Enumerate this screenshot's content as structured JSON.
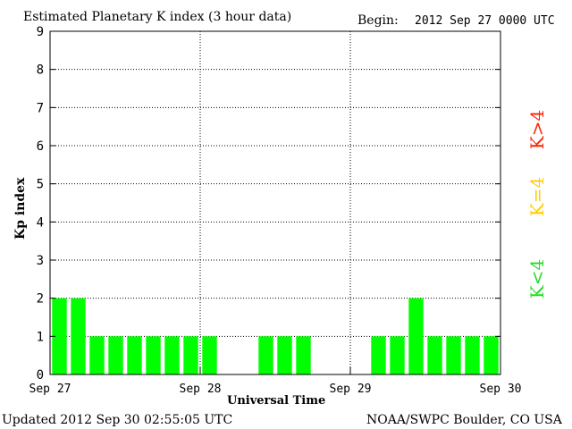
{
  "chart_data": {
    "type": "bar",
    "title": "Estimated Planetary K index (3 hour data)",
    "begin_label": "Begin:",
    "begin_value": "2012 Sep 27 0000 UTC",
    "xlabel": "Universal Time",
    "ylabel": "Kp index",
    "ylim": [
      0,
      9
    ],
    "yticks": [
      "0",
      "1",
      "2",
      "3",
      "4",
      "5",
      "6",
      "7",
      "8",
      "9"
    ],
    "xticks": [
      "Sep 27",
      "Sep 28",
      "Sep 29",
      "Sep 30"
    ],
    "grid": true,
    "bar_color": "#00ff00",
    "values": [
      2,
      2,
      1,
      1,
      1,
      1,
      1,
      1,
      1,
      null,
      null,
      1,
      1,
      1,
      null,
      null,
      null,
      1,
      1,
      2,
      1,
      1,
      1,
      1
    ],
    "legend": [
      {
        "label": "K<4",
        "color": "#22dd22"
      },
      {
        "label": "K=4",
        "color": "#ffcc00"
      },
      {
        "label": "K>4",
        "color": "#ff2200"
      }
    ]
  },
  "footer": {
    "updated": "Updated 2012 Sep 30 02:55:05 UTC",
    "credit": "NOAA/SWPC Boulder, CO USA"
  }
}
